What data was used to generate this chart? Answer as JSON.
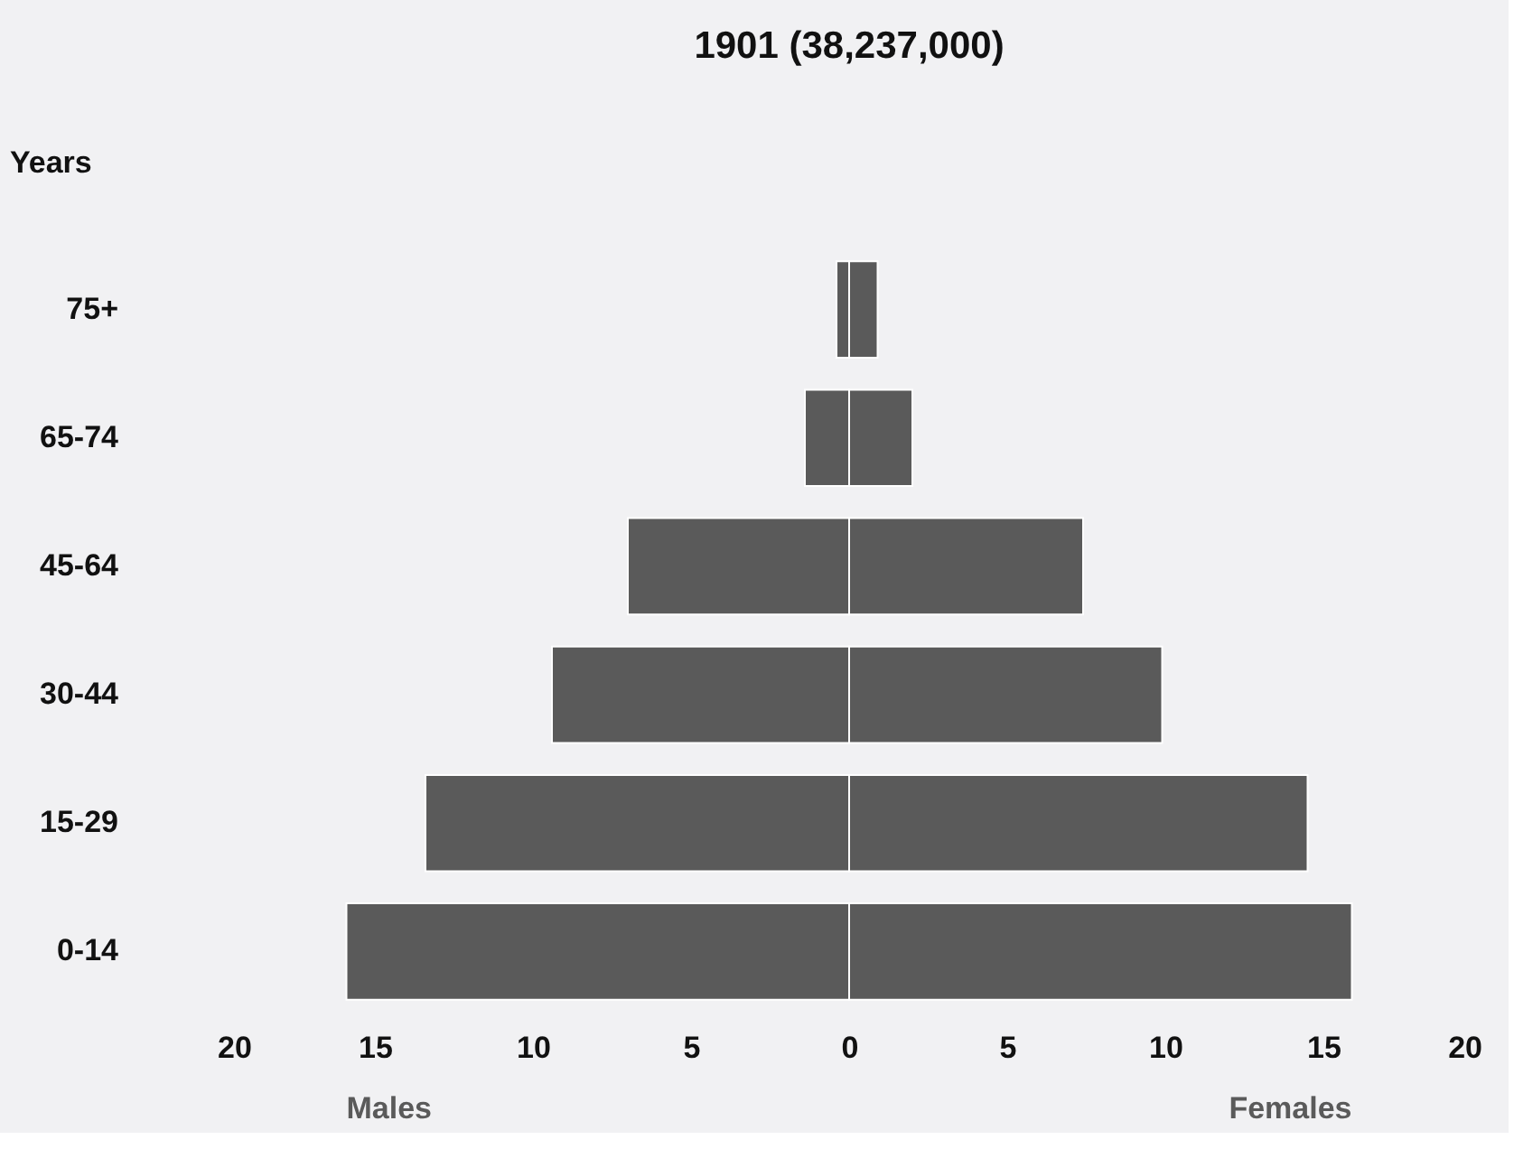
{
  "chart_data": {
    "type": "bar",
    "orientation": "horizontal",
    "stacked": true,
    "title": "1901   (38,237,000)",
    "ylabel": "Years",
    "categories": [
      "75+",
      "65-74",
      "45-64",
      "30-44",
      "15-29",
      "0-14"
    ],
    "series": [
      {
        "name": "Males",
        "color": "#5a5a5a",
        "values": [
          -0.4,
          -1.4,
          -7.0,
          -9.4,
          -13.4,
          -15.9
        ]
      },
      {
        "name": "Females",
        "color": "#5a5a5a",
        "values": [
          0.9,
          2.0,
          7.4,
          9.9,
          14.5,
          15.9
        ]
      }
    ],
    "xlim": [
      -20,
      20
    ],
    "xticks": [
      {
        "value": -20,
        "label": "20"
      },
      {
        "value": -15,
        "label": "15"
      },
      {
        "value": -10,
        "label": "10"
      },
      {
        "value": -5,
        "label": "5"
      },
      0,
      5,
      10,
      15,
      20
    ],
    "grid": false,
    "legend": false
  }
}
